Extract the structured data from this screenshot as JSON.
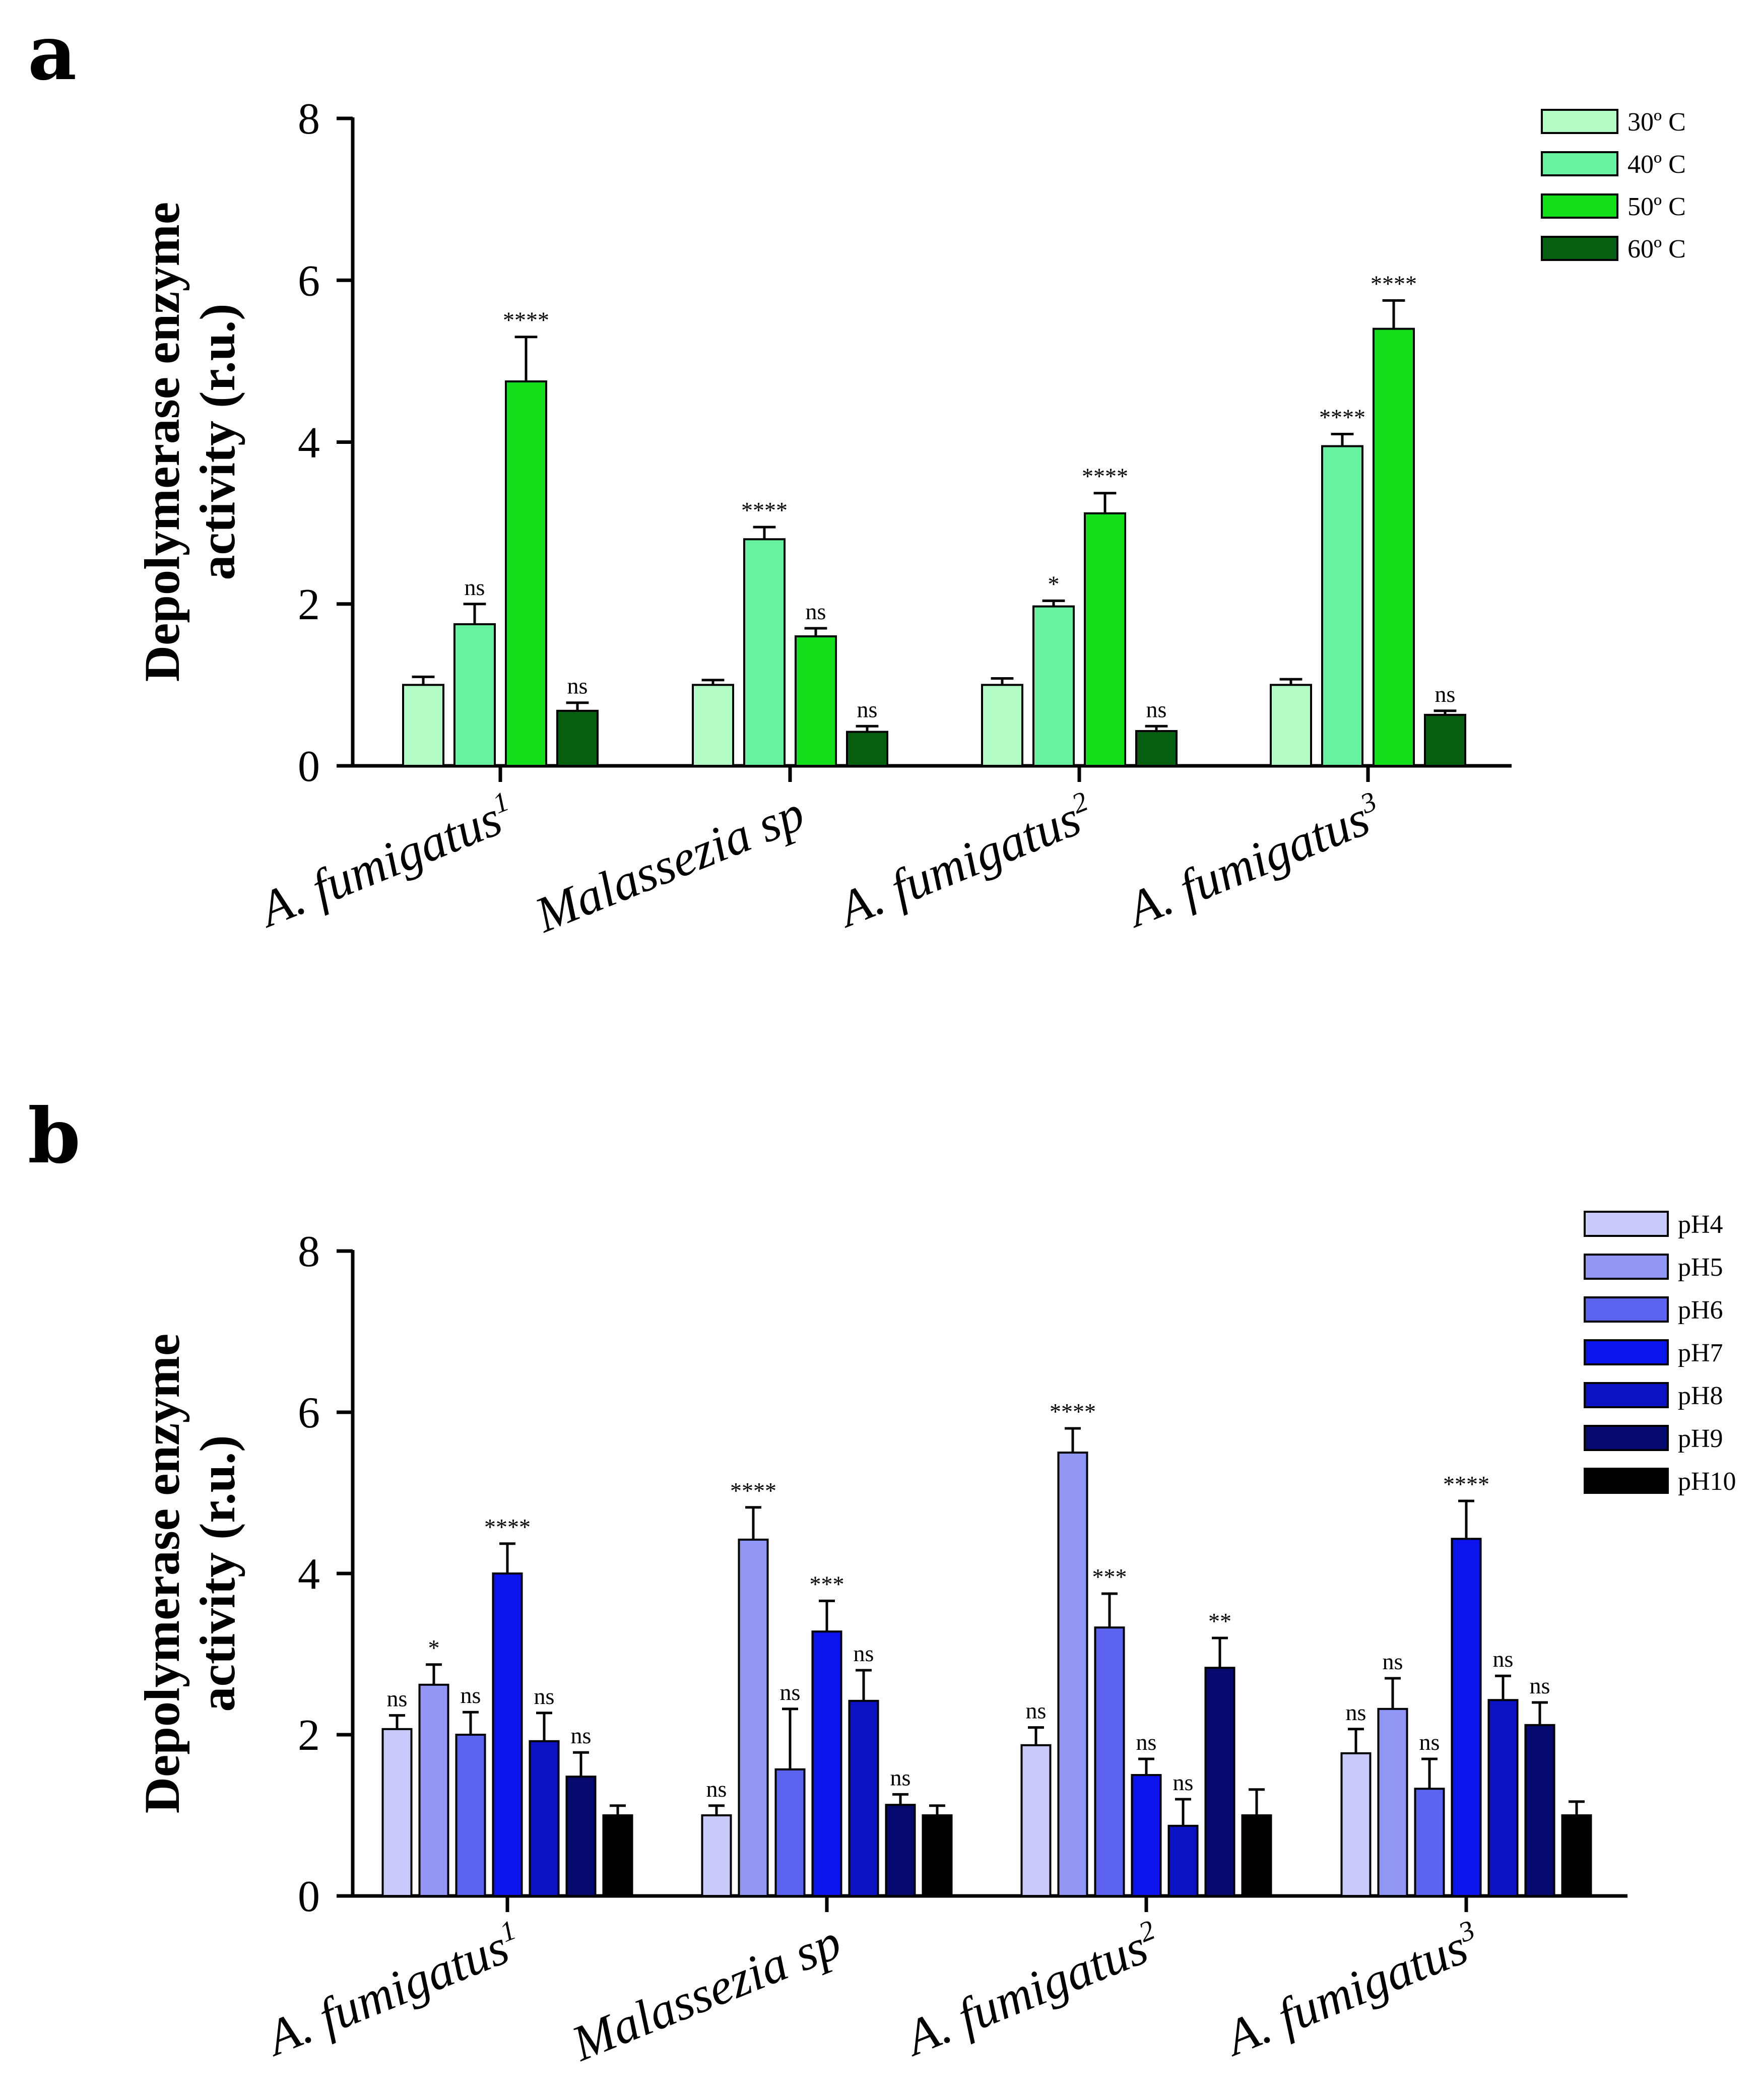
{
  "panels": [
    {
      "letter": "a"
    },
    {
      "letter": "b"
    }
  ],
  "chart_data": [
    {
      "type": "bar",
      "panel": "a",
      "ylabel_line1": "Depolymerase enzyme",
      "ylabel_line2": "activity (r.u.)",
      "xlabel": "",
      "ylim": [
        0,
        8
      ],
      "yticks": [
        0,
        2,
        4,
        6,
        8
      ],
      "legend_position": "top-right",
      "categories": [
        {
          "name": "A. fumigatus",
          "sup": "1"
        },
        {
          "name": "Malassezia sp",
          "sup": ""
        },
        {
          "name": "A. fumigatus",
          "sup": "2"
        },
        {
          "name": "A. fumigatus",
          "sup": "3"
        }
      ],
      "series": [
        {
          "name": "30º C",
          "color": "#b3fcc6",
          "values": [
            1.0,
            1.0,
            1.0,
            1.0
          ],
          "errors": [
            0.1,
            0.06,
            0.08,
            0.07
          ],
          "sig": [
            "",
            "",
            "",
            ""
          ]
        },
        {
          "name": "40º C",
          "color": "#66f2a0",
          "values": [
            1.75,
            2.8,
            1.97,
            3.95
          ],
          "errors": [
            0.25,
            0.15,
            0.07,
            0.15
          ],
          "sig": [
            "ns",
            "****",
            "*",
            "****"
          ]
        },
        {
          "name": "50º C",
          "color": "#12de1a",
          "values": [
            4.75,
            1.6,
            3.12,
            5.4
          ],
          "errors": [
            0.55,
            0.1,
            0.25,
            0.35
          ],
          "sig": [
            "****",
            "ns",
            "****",
            "****"
          ]
        },
        {
          "name": "60º C",
          "color": "#065e10",
          "values": [
            0.68,
            0.42,
            0.43,
            0.63
          ],
          "errors": [
            0.1,
            0.07,
            0.06,
            0.05
          ],
          "sig": [
            "ns",
            "ns",
            "ns",
            "ns"
          ]
        }
      ]
    },
    {
      "type": "bar",
      "panel": "b",
      "ylabel_line1": "Depolymerase enzyme",
      "ylabel_line2": "activity (r.u.)",
      "xlabel": "",
      "ylim": [
        0,
        8
      ],
      "yticks": [
        0,
        2,
        4,
        6,
        8
      ],
      "legend_position": "top-right",
      "categories": [
        {
          "name": "A. fumigatus",
          "sup": "1"
        },
        {
          "name": "Malassezia sp",
          "sup": ""
        },
        {
          "name": "A. fumigatus",
          "sup": "2"
        },
        {
          "name": "A. fumigatus",
          "sup": "3"
        }
      ],
      "series": [
        {
          "name": "pH4",
          "color": "#c8cafc",
          "values": [
            2.07,
            1.0,
            1.87,
            1.77
          ],
          "errors": [
            0.17,
            0.12,
            0.22,
            0.3
          ],
          "sig": [
            "ns",
            "ns",
            "ns",
            "ns"
          ]
        },
        {
          "name": "pH5",
          "color": "#9196f4",
          "values": [
            2.62,
            4.42,
            5.5,
            2.32
          ],
          "errors": [
            0.25,
            0.4,
            0.3,
            0.38
          ],
          "sig": [
            "*",
            "****",
            "****",
            "ns"
          ]
        },
        {
          "name": "pH6",
          "color": "#5c63ee",
          "values": [
            2.0,
            1.57,
            3.33,
            1.33
          ],
          "errors": [
            0.28,
            0.75,
            0.42,
            0.37
          ],
          "sig": [
            "ns",
            "ns",
            "***",
            "ns"
          ]
        },
        {
          "name": "pH7",
          "color": "#0c14ee",
          "values": [
            4.0,
            3.28,
            1.5,
            4.43
          ],
          "errors": [
            0.37,
            0.38,
            0.2,
            0.47
          ],
          "sig": [
            "****",
            "***",
            "ns",
            "****"
          ]
        },
        {
          "name": "pH8",
          "color": "#0a12c2",
          "values": [
            1.92,
            2.42,
            0.87,
            2.43
          ],
          "errors": [
            0.35,
            0.38,
            0.33,
            0.3
          ],
          "sig": [
            "ns",
            "ns",
            "ns",
            "ns"
          ]
        },
        {
          "name": "pH9",
          "color": "#05096e",
          "values": [
            1.48,
            1.13,
            2.83,
            2.12
          ],
          "errors": [
            0.3,
            0.13,
            0.37,
            0.28
          ],
          "sig": [
            "ns",
            "ns",
            "**",
            "ns"
          ]
        },
        {
          "name": "pH10",
          "color": "#000000",
          "values": [
            1.0,
            1.0,
            1.0,
            1.0
          ],
          "errors": [
            0.12,
            0.12,
            0.32,
            0.17
          ],
          "sig": [
            "",
            "",
            "",
            ""
          ]
        }
      ]
    }
  ]
}
